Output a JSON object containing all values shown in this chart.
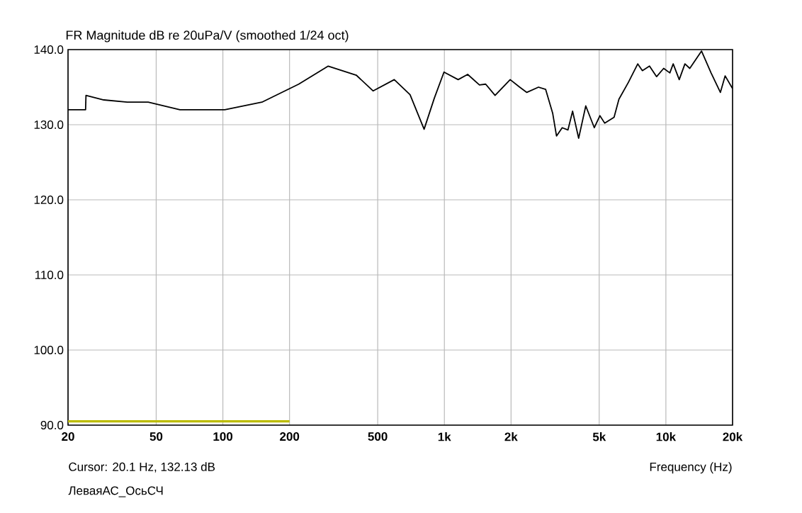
{
  "chart_data": {
    "type": "line",
    "title": "FR Magnitude dB re 20uPa/V (smoothed 1/24 oct)",
    "xlabel": "Frequency (Hz)",
    "annotations": [
      "Cursor: 20.1 Hz, 132.13 dB",
      "ЛеваяАС_ОсьСЧ"
    ],
    "log": "x",
    "grid": true,
    "xlim": [
      20,
      20000
    ],
    "ylim": [
      90,
      140
    ],
    "xticks": [
      20,
      50,
      100,
      200,
      500,
      {
        "value": 1000,
        "label": "1k"
      },
      {
        "value": 2000,
        "label": "2k"
      },
      {
        "value": 5000,
        "label": "5k"
      },
      {
        "value": 10000,
        "label": "10k"
      },
      {
        "value": 20000,
        "label": "20k"
      }
    ],
    "yticks": [
      {
        "value": 90,
        "label": "90.0"
      },
      {
        "value": 100,
        "label": "100.0"
      },
      {
        "value": 110,
        "label": "110.0"
      },
      {
        "value": 120,
        "label": "120.0"
      },
      {
        "value": 130,
        "label": "130.0"
      },
      {
        "value": 140,
        "label": "140.0"
      }
    ],
    "series": [
      {
        "color": "#000000",
        "x": [
          20,
          24,
          24.1,
          29,
          37,
          46,
          64,
          102,
          150,
          220,
          299,
          400,
          477,
          594,
          700,
          810,
          900,
          996,
          1154,
          1274,
          1440,
          1536,
          1694,
          1982,
          2188,
          2356,
          2660,
          2866,
          3084,
          3208,
          3404,
          3612,
          3792,
          4038,
          4348,
          4752,
          5036,
          5296,
          5836,
          6138,
          6762,
          7466,
          7834,
          8434,
          9080,
          9774,
          10420,
          10790,
          11488,
          12190,
          12820,
          14490,
          15994,
          17620,
          18520,
          20000
        ],
        "values": [
          132.0,
          132.0,
          133.9,
          133.3,
          133.0,
          133.0,
          132.0,
          132.0,
          133.0,
          135.4,
          137.8,
          136.6,
          134.5,
          136.0,
          134.0,
          129.4,
          133.5,
          137.0,
          136.0,
          136.7,
          135.3,
          135.4,
          133.9,
          136.0,
          135.0,
          134.3,
          135.0,
          134.7,
          131.5,
          128.5,
          129.6,
          129.3,
          131.8,
          128.2,
          132.5,
          129.6,
          131.2,
          130.2,
          131.0,
          133.4,
          135.6,
          138.1,
          137.2,
          137.8,
          136.4,
          137.5,
          136.9,
          138.1,
          136.0,
          138.1,
          137.5,
          139.8,
          136.9,
          134.3,
          136.5,
          134.8
        ]
      },
      {
        "color": "#bcbc00",
        "x": [
          20,
          200
        ],
        "values": [
          90.5,
          90.5
        ]
      }
    ]
  }
}
